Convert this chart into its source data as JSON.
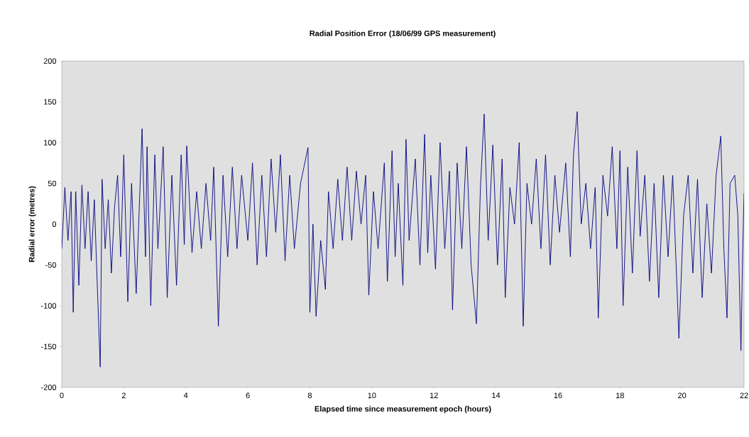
{
  "chart_data": {
    "type": "line",
    "title": "Radial Position Error (18/06/99 GPS measurement)",
    "xlabel": "Elapsed time since measurement epoch (hours)",
    "ylabel": "Radial error (metres)",
    "x": [
      0.0,
      0.1,
      0.2,
      0.3,
      0.37,
      0.45,
      0.55,
      0.65,
      0.75,
      0.85,
      0.95,
      1.05,
      1.15,
      1.24,
      1.3,
      1.4,
      1.5,
      1.6,
      1.7,
      1.8,
      1.9,
      2.0,
      2.13,
      2.25,
      2.4,
      2.59,
      2.7,
      2.75,
      2.87,
      3.0,
      3.1,
      3.27,
      3.4,
      3.55,
      3.7,
      3.85,
      3.95,
      4.03,
      4.2,
      4.35,
      4.5,
      4.65,
      4.8,
      4.9,
      5.05,
      5.2,
      5.35,
      5.5,
      5.65,
      5.8,
      6.0,
      6.15,
      6.3,
      6.45,
      6.6,
      6.75,
      6.9,
      7.05,
      7.2,
      7.35,
      7.5,
      7.7,
      7.94,
      8.0,
      8.1,
      8.2,
      8.35,
      8.5,
      8.6,
      8.75,
      8.9,
      9.05,
      9.2,
      9.35,
      9.5,
      9.65,
      9.8,
      9.9,
      10.05,
      10.2,
      10.4,
      10.5,
      10.65,
      10.75,
      10.85,
      11.0,
      11.1,
      11.2,
      11.4,
      11.55,
      11.7,
      11.8,
      11.9,
      12.05,
      12.2,
      12.35,
      12.5,
      12.6,
      12.75,
      12.9,
      13.05,
      13.2,
      13.37,
      13.5,
      13.62,
      13.75,
      13.9,
      14.05,
      14.2,
      14.3,
      14.45,
      14.6,
      14.75,
      14.88,
      15.0,
      15.15,
      15.3,
      15.45,
      15.6,
      15.75,
      15.9,
      16.05,
      16.25,
      16.4,
      16.5,
      16.62,
      16.75,
      16.9,
      17.05,
      17.2,
      17.3,
      17.45,
      17.6,
      17.75,
      17.9,
      18.0,
      18.1,
      18.25,
      18.4,
      18.55,
      18.65,
      18.8,
      18.95,
      19.1,
      19.25,
      19.4,
      19.55,
      19.7,
      19.9,
      20.05,
      20.2,
      20.35,
      20.5,
      20.65,
      20.8,
      20.95,
      21.1,
      21.25,
      21.35,
      21.45,
      21.55,
      21.7,
      21.8,
      21.9,
      21.95,
      22.0
    ],
    "series": [
      {
        "color": "#000080",
        "values": [
          -30,
          45,
          -20,
          40,
          -108,
          40,
          -75,
          48,
          -30,
          40,
          -45,
          30,
          -80,
          -175,
          55,
          -30,
          30,
          -60,
          20,
          60,
          -40,
          85,
          -95,
          50,
          -85,
          117,
          -40,
          95,
          -100,
          85,
          -30,
          95,
          -90,
          60,
          -75,
          85,
          -25,
          96,
          -35,
          40,
          -30,
          50,
          -20,
          70,
          -125,
          60,
          -40,
          70,
          -30,
          60,
          -20,
          75,
          -50,
          60,
          -40,
          80,
          -10,
          85,
          -45,
          60,
          -30,
          50,
          94,
          -108,
          0,
          -113,
          -20,
          -80,
          40,
          -30,
          55,
          -20,
          70,
          -20,
          65,
          0,
          60,
          -87,
          40,
          -30,
          75,
          -70,
          90,
          -40,
          50,
          -75,
          104,
          -20,
          80,
          -50,
          110,
          -35,
          60,
          -55,
          100,
          -30,
          65,
          -105,
          75,
          -30,
          95,
          -50,
          -122,
          45,
          135,
          -20,
          97,
          -50,
          80,
          -90,
          45,
          0,
          100,
          -125,
          50,
          0,
          80,
          -30,
          85,
          -50,
          60,
          -10,
          75,
          -40,
          85,
          138,
          0,
          50,
          -30,
          45,
          -115,
          60,
          10,
          95,
          -30,
          90,
          -100,
          70,
          -60,
          90,
          -15,
          60,
          -70,
          50,
          -90,
          60,
          -40,
          60,
          -140,
          10,
          60,
          -60,
          55,
          -90,
          25,
          -60,
          60,
          108,
          -30,
          -115,
          50,
          60,
          10,
          -155,
          -45,
          38
        ]
      }
    ],
    "xlim": [
      0,
      22
    ],
    "ylim": [
      -200,
      200
    ],
    "xticks": [
      0,
      2,
      4,
      6,
      8,
      10,
      12,
      14,
      16,
      18,
      20,
      22
    ],
    "yticks": [
      -200,
      -150,
      -100,
      -50,
      0,
      50,
      100,
      150,
      200
    ],
    "grid": false,
    "marker": "none",
    "line_style": "solid"
  }
}
